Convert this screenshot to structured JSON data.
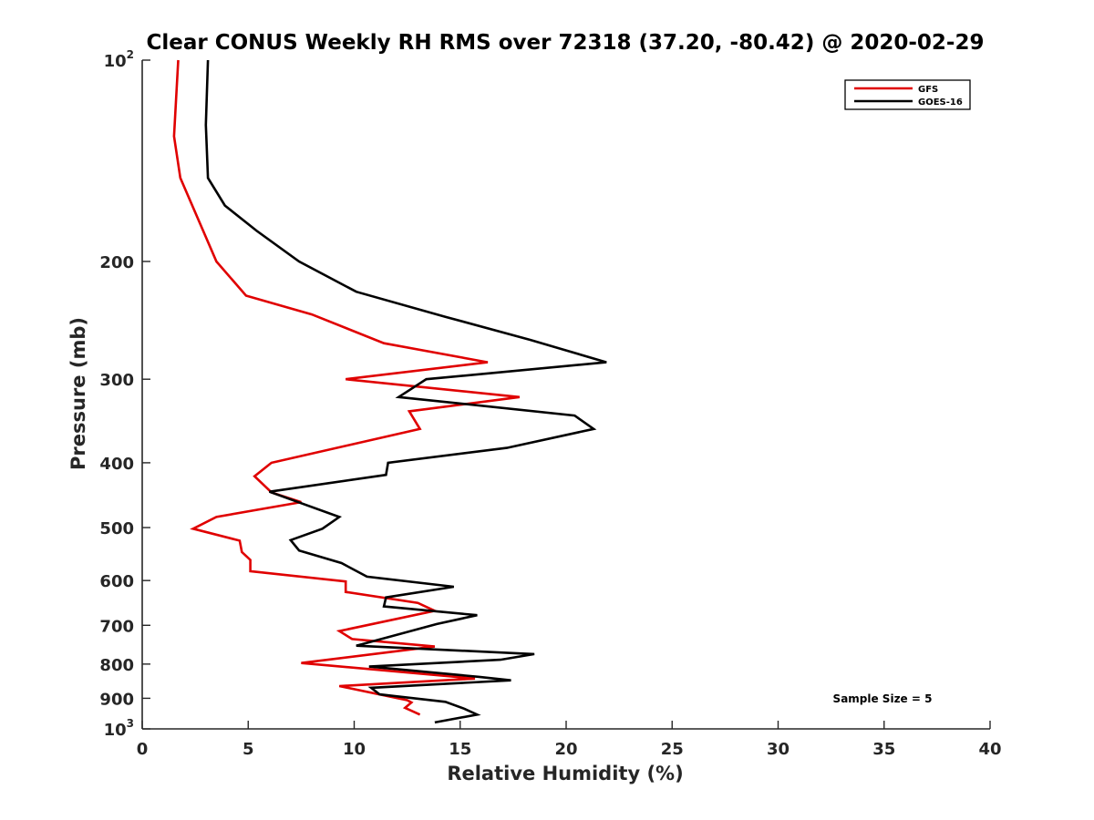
{
  "chart_data": {
    "type": "line",
    "title": "Clear CONUS Weekly RH RMS over 72318 (37.20, -80.42) @ 2020-02-29",
    "xlabel": "Relative Humidity (%)",
    "ylabel": "Pressure (mb)",
    "xlim": [
      0,
      40
    ],
    "ylim": [
      1000,
      100
    ],
    "yscale": "log",
    "xticks": [
      0,
      5,
      10,
      15,
      20,
      25,
      30,
      35,
      40
    ],
    "xtick_labels": [
      "0",
      "5",
      "10",
      "15",
      "20",
      "25",
      "30",
      "35",
      "40"
    ],
    "yticks": [
      {
        "value": 100,
        "base": "10",
        "exp": "2",
        "label": ""
      },
      {
        "value": 200,
        "base": "",
        "exp": "",
        "label": "200"
      },
      {
        "value": 300,
        "base": "",
        "exp": "",
        "label": "300"
      },
      {
        "value": 400,
        "base": "",
        "exp": "",
        "label": "400"
      },
      {
        "value": 500,
        "base": "",
        "exp": "",
        "label": "500"
      },
      {
        "value": 600,
        "base": "",
        "exp": "",
        "label": "600"
      },
      {
        "value": 700,
        "base": "",
        "exp": "",
        "label": "700"
      },
      {
        "value": 800,
        "base": "",
        "exp": "",
        "label": "800"
      },
      {
        "value": 900,
        "base": "",
        "exp": "",
        "label": "900"
      },
      {
        "value": 1000,
        "base": "10",
        "exp": "3",
        "label": ""
      }
    ],
    "grid": false,
    "legend_position": "top-right",
    "annotation": "Sample Size = 5",
    "series": [
      {
        "name": "GFS",
        "color": "#e00000",
        "points": [
          {
            "x": 1.7,
            "p": 100
          },
          {
            "x": 1.5,
            "p": 130
          },
          {
            "x": 1.8,
            "p": 150
          },
          {
            "x": 3.5,
            "p": 200
          },
          {
            "x": 4.9,
            "p": 225
          },
          {
            "x": 8.0,
            "p": 240
          },
          {
            "x": 11.4,
            "p": 265
          },
          {
            "x": 16.3,
            "p": 283
          },
          {
            "x": 9.6,
            "p": 300
          },
          {
            "x": 17.8,
            "p": 319
          },
          {
            "x": 12.6,
            "p": 335
          },
          {
            "x": 13.1,
            "p": 356
          },
          {
            "x": 6.1,
            "p": 400
          },
          {
            "x": 5.3,
            "p": 419
          },
          {
            "x": 6.1,
            "p": 443
          },
          {
            "x": 7.5,
            "p": 458
          },
          {
            "x": 3.5,
            "p": 482
          },
          {
            "x": 2.4,
            "p": 502
          },
          {
            "x": 4.6,
            "p": 523
          },
          {
            "x": 4.7,
            "p": 544
          },
          {
            "x": 5.1,
            "p": 559
          },
          {
            "x": 5.1,
            "p": 581
          },
          {
            "x": 9.6,
            "p": 602
          },
          {
            "x": 9.6,
            "p": 624
          },
          {
            "x": 13.0,
            "p": 648
          },
          {
            "x": 13.8,
            "p": 666
          },
          {
            "x": 9.3,
            "p": 714
          },
          {
            "x": 9.9,
            "p": 734
          },
          {
            "x": 13.8,
            "p": 753
          },
          {
            "x": 7.5,
            "p": 797
          },
          {
            "x": 15.7,
            "p": 841
          },
          {
            "x": 9.3,
            "p": 863
          },
          {
            "x": 12.5,
            "p": 906
          },
          {
            "x": 12.7,
            "p": 913
          },
          {
            "x": 12.4,
            "p": 930
          },
          {
            "x": 13.1,
            "p": 952
          }
        ]
      },
      {
        "name": "GOES-16",
        "color": "#000000",
        "points": [
          {
            "x": 3.1,
            "p": 100
          },
          {
            "x": 3.0,
            "p": 125
          },
          {
            "x": 3.1,
            "p": 150
          },
          {
            "x": 3.9,
            "p": 165
          },
          {
            "x": 5.4,
            "p": 180
          },
          {
            "x": 7.4,
            "p": 200
          },
          {
            "x": 10.1,
            "p": 222
          },
          {
            "x": 14.3,
            "p": 242
          },
          {
            "x": 18.3,
            "p": 262
          },
          {
            "x": 21.9,
            "p": 283
          },
          {
            "x": 13.4,
            "p": 300
          },
          {
            "x": 12.1,
            "p": 319
          },
          {
            "x": 20.4,
            "p": 340
          },
          {
            "x": 21.3,
            "p": 356
          },
          {
            "x": 17.2,
            "p": 380
          },
          {
            "x": 11.6,
            "p": 400
          },
          {
            "x": 11.5,
            "p": 417
          },
          {
            "x": 6.0,
            "p": 442
          },
          {
            "x": 9.3,
            "p": 482
          },
          {
            "x": 8.5,
            "p": 502
          },
          {
            "x": 7.0,
            "p": 522
          },
          {
            "x": 7.4,
            "p": 541
          },
          {
            "x": 9.4,
            "p": 565
          },
          {
            "x": 10.6,
            "p": 592
          },
          {
            "x": 14.7,
            "p": 613
          },
          {
            "x": 11.5,
            "p": 636
          },
          {
            "x": 11.4,
            "p": 656
          },
          {
            "x": 15.8,
            "p": 676
          },
          {
            "x": 13.9,
            "p": 697
          },
          {
            "x": 10.1,
            "p": 751
          },
          {
            "x": 18.5,
            "p": 773
          },
          {
            "x": 16.9,
            "p": 788
          },
          {
            "x": 10.7,
            "p": 807
          },
          {
            "x": 15.9,
            "p": 836
          },
          {
            "x": 17.4,
            "p": 846
          },
          {
            "x": 10.8,
            "p": 868
          },
          {
            "x": 11.2,
            "p": 888
          },
          {
            "x": 14.3,
            "p": 911
          },
          {
            "x": 15.2,
            "p": 933
          },
          {
            "x": 15.8,
            "p": 952
          },
          {
            "x": 13.8,
            "p": 978
          }
        ]
      }
    ]
  }
}
